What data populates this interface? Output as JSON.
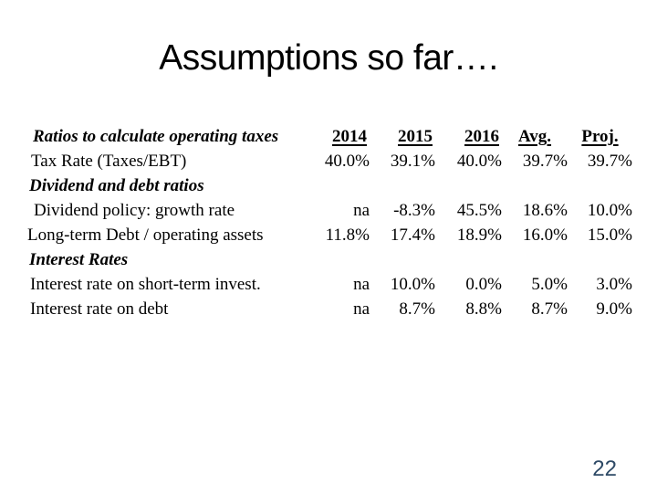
{
  "slide": {
    "title": "Assumptions so far….",
    "page_number": "22",
    "page_number_color": "#2e4a66",
    "background_color": "#ffffff",
    "text_color": "#000000"
  },
  "table": {
    "columns": [
      "2014",
      "2015",
      "2016",
      "Avg.",
      "Proj."
    ],
    "rows": [
      {
        "kind": "header",
        "label": "Ratios to calculate operating taxes",
        "values": [
          "2014",
          "2015",
          "2016",
          "Avg.",
          "Proj."
        ]
      },
      {
        "kind": "data",
        "label": "Tax Rate (Taxes/EBT)",
        "values": [
          "40.0%",
          "39.1%",
          "40.0%",
          "39.7%",
          "39.7%"
        ]
      },
      {
        "kind": "section",
        "label": "Dividend and debt ratios",
        "values": [
          "",
          "",
          "",
          "",
          ""
        ]
      },
      {
        "kind": "data",
        "label": "Dividend policy: growth rate",
        "values": [
          "na",
          "-8.3%",
          "45.5%",
          "18.6%",
          "10.0%"
        ]
      },
      {
        "kind": "data",
        "label": "Long-term Debt / operating assets",
        "values": [
          "11.8%",
          "17.4%",
          "18.9%",
          "16.0%",
          "15.0%"
        ]
      },
      {
        "kind": "section",
        "label": "Interest Rates",
        "values": [
          "",
          "",
          "",
          "",
          ""
        ]
      },
      {
        "kind": "data",
        "label": "Interest rate on short-term invest.",
        "values": [
          "na",
          "10.0%",
          "0.0%",
          "5.0%",
          "3.0%"
        ]
      },
      {
        "kind": "data",
        "label": "Interest rate on debt",
        "values": [
          "na",
          "8.7%",
          "8.8%",
          "8.7%",
          "9.0%"
        ]
      }
    ]
  }
}
